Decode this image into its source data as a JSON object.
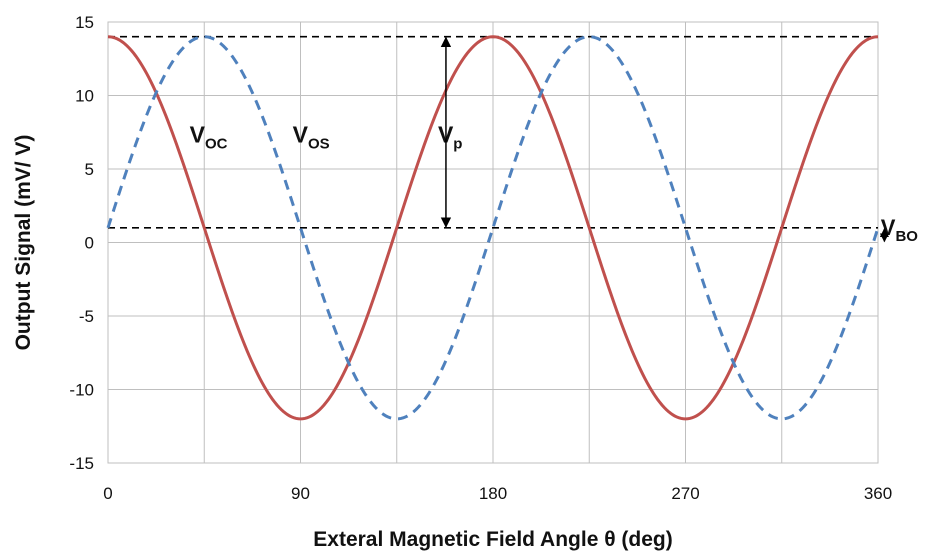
{
  "chart_data": {
    "type": "line",
    "xlabel": "Exteral Magnetic Field Angle θ (deg)",
    "ylabel": "Output Signal (mV/ V)",
    "xlim": [
      0,
      360
    ],
    "ylim": [
      -15,
      15
    ],
    "x_ticks": [
      0,
      90,
      180,
      270,
      360
    ],
    "y_ticks": [
      15,
      10,
      5,
      0,
      -5,
      -10,
      -15
    ],
    "grid": true,
    "legend": "none",
    "series": [
      {
        "name": "V_OC",
        "color": "#c0504d",
        "style": "solid",
        "function": "offset + amplitude*cos(2θ)",
        "amplitude": 13,
        "offset": 1,
        "max": 14,
        "min": -12
      },
      {
        "name": "V_OS",
        "color": "#4f81bd",
        "style": "dashed",
        "function": "offset + amplitude*sin(2θ)",
        "amplitude": 13,
        "offset": 1,
        "max": 14,
        "min": -12
      }
    ],
    "reference_lines": [
      {
        "y": 14,
        "style": "dashed",
        "color": "#000000"
      },
      {
        "y": 1,
        "style": "dashed",
        "color": "#000000"
      }
    ],
    "annotations": [
      {
        "main": "V",
        "sub": "OC",
        "x": 47,
        "y": 6.8
      },
      {
        "main": "V",
        "sub": "OS",
        "x": 95,
        "y": 6.8
      },
      {
        "main": "V",
        "sub": "p",
        "x": 160,
        "y": 6.8,
        "arrow_from": 14,
        "arrow_to": 1,
        "arrow_x": 158
      },
      {
        "main": "V",
        "sub": "BO",
        "x": 370,
        "y": 0.5,
        "arrow_from": 1,
        "arrow_to": 0,
        "arrow_x": 363
      }
    ]
  }
}
